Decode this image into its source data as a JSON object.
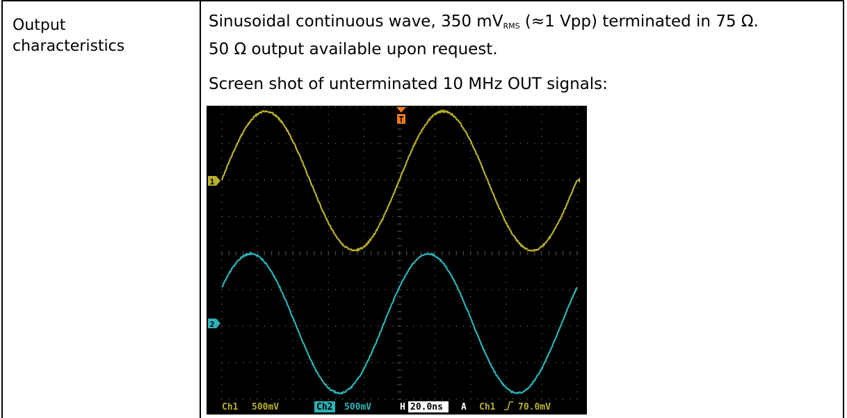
{
  "label": {
    "line1": "Output",
    "line2": "characteristics"
  },
  "description": {
    "line1_a": "Sinusoidal continuous wave, 350 mV",
    "line1_sub": "RMS",
    "line1_b": " (≈1 Vpp) terminated in 75 Ω.",
    "line2": "50 Ω output available upon request.",
    "line3": "Screen shot of unterminated 10 MHz OUT signals:"
  },
  "scope": {
    "ch1_label": "Ch1",
    "ch1_scale": "500mV",
    "ch2_label": "Ch2",
    "ch2_scale": "500mV",
    "h_label": "H",
    "timebase": "20.0ns",
    "trigger_label": "A",
    "trigger_source": "Ch1",
    "trigger_level": "70.0mV",
    "marker_ch1": "1",
    "marker_ch2": "2",
    "marker_trigger": "T",
    "colors": {
      "ch1": "#b8b02a",
      "ch2": "#2bb3b8",
      "trigger": "#f07a1a",
      "grid": "#6a6a6a"
    }
  }
}
